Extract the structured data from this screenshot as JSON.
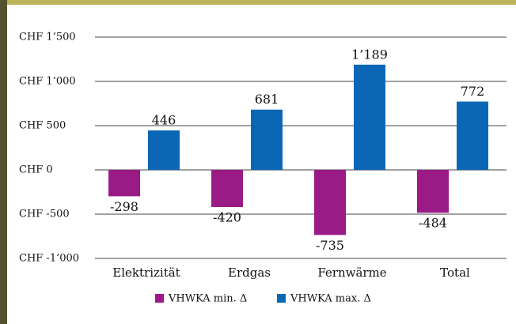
{
  "chart_data": {
    "type": "bar",
    "categories": [
      "Elektrizität",
      "Erdgas",
      "Fernwärme",
      "Total"
    ],
    "series": [
      {
        "name": "VHWKA min. Δ",
        "color": "#9b1b86",
        "values": [
          -298,
          -420,
          -735,
          -484
        ]
      },
      {
        "name": "VHWKA max. Δ",
        "color": "#0b67b5",
        "values": [
          446,
          681,
          1189,
          772
        ],
        "value_labels": [
          "446",
          "681",
          "1’189",
          "772"
        ]
      }
    ],
    "ylim": [
      -1000,
      1500
    ],
    "yticks": [
      {
        "value": -1000,
        "label": "CHF -1’000"
      },
      {
        "value": -500,
        "label": "CHF -500"
      },
      {
        "value": 0,
        "label": "CHF 0"
      },
      {
        "value": 500,
        "label": "CHF 500"
      },
      {
        "value": 1000,
        "label": "CHF 1’000"
      },
      {
        "value": 1500,
        "label": "CHF 1’500"
      }
    ],
    "grid": true,
    "legend": "bottom"
  }
}
